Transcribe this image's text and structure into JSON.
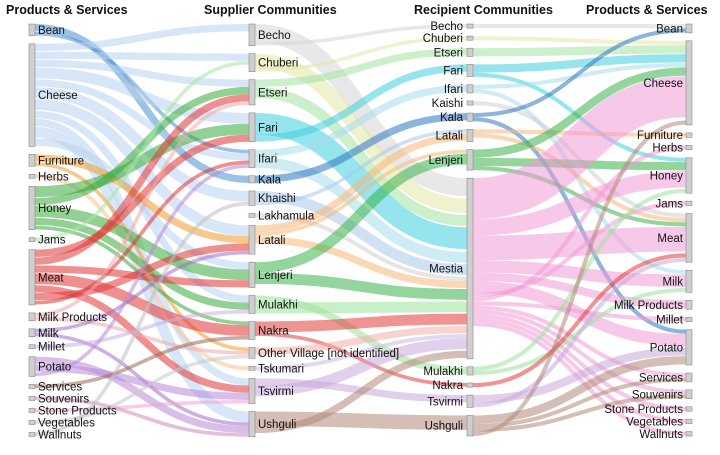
{
  "headers": {
    "left": "Products & Services",
    "supplier": "Supplier Communities",
    "recipient": "Recipient Communities",
    "right": "Products & Services"
  },
  "left_products": [
    "Bean",
    "Cheese",
    "Furniture",
    "Herbs",
    "Honey",
    "Jams",
    "Meat",
    "Milk Products",
    "Milk",
    "Millet",
    "Potato",
    "Services",
    "Souvenirs",
    "Stone Products",
    "Vegetables",
    "Wallnuts"
  ],
  "suppliers": [
    "Becho",
    "Chuberi",
    "Etseri",
    "Fari",
    "Ifari",
    "Kala",
    "Khaishi",
    "Lakhamula",
    "Latali",
    "Lenjeri",
    "Mulakhi",
    "Nakra",
    "Other Village [not identified]",
    "Tskumari",
    "Tsvirmi",
    "Ushguli"
  ],
  "recipients": [
    "Becho",
    "Chuberi",
    "Etseri",
    "Fari",
    "Ifari",
    "Kaishi",
    "Kala",
    "Latali",
    "Lenjeri",
    "Mestia",
    "Mulakhi",
    "Nakra",
    "Tsvirmi",
    "Ushguli"
  ],
  "right_products": [
    "Bean",
    "Cheese",
    "Furniture",
    "Herbs",
    "Honey",
    "Jams",
    "Meat",
    "Milk",
    "Milk Products",
    "Millet",
    "Potato",
    "Services",
    "Souvenirs",
    "Stone Products",
    "Vegetables",
    "Wallnuts"
  ],
  "colors": {
    "Becho": "#d6d6d6",
    "Chuberi": "#e3e6a6",
    "Etseri": "#a3e2a3",
    "Fari": "#3fcde0",
    "Ifari": "#a6dcea",
    "Kala": "#2f77c0",
    "Khaishi": "#a9c9ea",
    "Lakhamula": "#cfcfcf",
    "Latali": "#f5b878",
    "Lenjeri": "#3bb34a",
    "Mulakhi": "#9be39b",
    "Nakra": "#e23a3a",
    "Other Village [not identified]": "#f0b1a6",
    "Tskumari": "#c9b9e6",
    "Tsvirmi": "#c8a8dc",
    "Ushguli": "#b08878",
    "Mestia": "#f29ad7",
    "Kaishi": "#cfcfcf",
    "Bean": "#4a8fd0",
    "Cheese": "#b8d4f0",
    "Furniture": "#f39a2a",
    "Herbs": "#f5c48f",
    "Honey": "#3aaa3a",
    "Jams": "#a6e6a6",
    "Meat": "#e03434",
    "Milk Products": "#f3a7a7",
    "Milk": "#a070c8",
    "Millet": "#c8aee6",
    "Potato": "#b88ad8",
    "Services": "#9c6a5a",
    "Souvenirs": "#d08ab8",
    "Stone Products": "#f4a0d2",
    "Vegetables": "#c8c8c8",
    "Wallnuts": "#c0c0c0"
  },
  "flows_product_supplier": [
    [
      "Bean",
      "Kala",
      2
    ],
    [
      "Bean",
      "Ifari",
      1
    ],
    [
      "Cheese",
      "Becho",
      2
    ],
    [
      "Cheese",
      "Chuberi",
      2
    ],
    [
      "Cheese",
      "Etseri",
      2
    ],
    [
      "Cheese",
      "Fari",
      3
    ],
    [
      "Cheese",
      "Ifari",
      2
    ],
    [
      "Cheese",
      "Khaishi",
      3
    ],
    [
      "Cheese",
      "Latali",
      3
    ],
    [
      "Cheese",
      "Mulakhi",
      2
    ],
    [
      "Cheese",
      "Tsvirmi",
      2
    ],
    [
      "Cheese",
      "Ushguli",
      3
    ],
    [
      "Cheese",
      "Lenjeri",
      2
    ],
    [
      "Furniture",
      "Latali",
      2
    ],
    [
      "Furniture",
      "Other Village [not identified]",
      1
    ],
    [
      "Herbs",
      "Tskumari",
      1
    ],
    [
      "Honey",
      "Fari",
      3
    ],
    [
      "Honey",
      "Etseri",
      2
    ],
    [
      "Honey",
      "Lenjeri",
      3
    ],
    [
      "Honey",
      "Mulakhi",
      2
    ],
    [
      "Honey",
      "Nakra",
      1
    ],
    [
      "Jams",
      "Chuberi",
      1
    ],
    [
      "Meat",
      "Fari",
      2
    ],
    [
      "Meat",
      "Etseri",
      2
    ],
    [
      "Meat",
      "Lenjeri",
      2
    ],
    [
      "Meat",
      "Nakra",
      3
    ],
    [
      "Meat",
      "Tsvirmi",
      2
    ],
    [
      "Meat",
      "Latali",
      2
    ],
    [
      "Meat",
      "Ifari",
      1
    ],
    [
      "Milk Products",
      "Etseri",
      1
    ],
    [
      "Milk Products",
      "Other Village [not identified]",
      1
    ],
    [
      "Milk",
      "Latali",
      1
    ],
    [
      "Milk",
      "Ushguli",
      1
    ],
    [
      "Millet",
      "Mulakhi",
      1
    ],
    [
      "Potato",
      "Ushguli",
      2
    ],
    [
      "Potato",
      "Tsvirmi",
      2
    ],
    [
      "Potato",
      "Ifari",
      1
    ],
    [
      "Services",
      "Nakra",
      1
    ],
    [
      "Souvenirs",
      "Ushguli",
      1
    ],
    [
      "Stone Products",
      "Tsvirmi",
      1
    ],
    [
      "Vegetables",
      "Other Village [not identified]",
      1
    ],
    [
      "Wallnuts",
      "Khaishi",
      1
    ]
  ],
  "flows_supplier_recipient": [
    [
      "Becho",
      "Mestia",
      5
    ],
    [
      "Becho",
      "Becho",
      1
    ],
    [
      "Chuberi",
      "Mestia",
      4
    ],
    [
      "Chuberi",
      "Chuberi",
      1
    ],
    [
      "Etseri",
      "Etseri",
      2
    ],
    [
      "Etseri",
      "Mestia",
      3
    ],
    [
      "Fari",
      "Mestia",
      6
    ],
    [
      "Fari",
      "Fari",
      2
    ],
    [
      "Ifari",
      "Ifari",
      2
    ],
    [
      "Ifari",
      "Mestia",
      3
    ],
    [
      "Kala",
      "Kala",
      2
    ],
    [
      "Khaishi",
      "Mestia",
      3
    ],
    [
      "Khaishi",
      "Latali",
      1
    ],
    [
      "Lakhamula",
      "Mestia",
      1
    ],
    [
      "Latali",
      "Latali",
      2
    ],
    [
      "Latali",
      "Lenjeri",
      1
    ],
    [
      "Latali",
      "Mestia",
      2
    ],
    [
      "Lenjeri",
      "Lenjeri",
      3
    ],
    [
      "Lenjeri",
      "Mestia",
      3
    ],
    [
      "Mulakhi",
      "Mulakhi",
      2
    ],
    [
      "Mulakhi",
      "Mestia",
      3
    ],
    [
      "Nakra",
      "Mestia",
      3
    ],
    [
      "Nakra",
      "Nakra",
      1
    ],
    [
      "Other Village [not identified]",
      "Mestia",
      2
    ],
    [
      "Tskumari",
      "Mestia",
      1
    ],
    [
      "Tsvirmi",
      "Tsvirmi",
      2
    ],
    [
      "Tsvirmi",
      "Mestia",
      3
    ],
    [
      "Ushguli",
      "Ushguli",
      4
    ],
    [
      "Ushguli",
      "Mestia",
      2
    ]
  ],
  "flows_recipient_product": [
    [
      "Becho",
      "Bean",
      1
    ],
    [
      "Chuberi",
      "Cheese",
      1
    ],
    [
      "Etseri",
      "Cheese",
      2
    ],
    [
      "Fari",
      "Cheese",
      2
    ],
    [
      "Fari",
      "Honey",
      1
    ],
    [
      "Ifari",
      "Cheese",
      1
    ],
    [
      "Ifari",
      "Milk",
      1
    ],
    [
      "Kaishi",
      "Meat",
      1
    ],
    [
      "Kala",
      "Bean",
      1
    ],
    [
      "Kala",
      "Potato",
      1
    ],
    [
      "Latali",
      "Furniture",
      1
    ],
    [
      "Latali",
      "Meat",
      1
    ],
    [
      "Lenjeri",
      "Cheese",
      2
    ],
    [
      "Lenjeri",
      "Honey",
      2
    ],
    [
      "Lenjeri",
      "Meat",
      1
    ],
    [
      "Mestia",
      "Cheese",
      10
    ],
    [
      "Mestia",
      "Honey",
      4
    ],
    [
      "Mestia",
      "Meat",
      6
    ],
    [
      "Mestia",
      "Milk",
      3
    ],
    [
      "Mestia",
      "Milk Products",
      2
    ],
    [
      "Mestia",
      "Potato",
      3
    ],
    [
      "Mestia",
      "Jams",
      1
    ],
    [
      "Mestia",
      "Herbs",
      1
    ],
    [
      "Mestia",
      "Millet",
      1
    ],
    [
      "Mestia",
      "Services",
      1
    ],
    [
      "Mestia",
      "Souvenirs",
      1
    ],
    [
      "Mestia",
      "Stone Products",
      1
    ],
    [
      "Mestia",
      "Vegetables",
      1
    ],
    [
      "Mestia",
      "Wallnuts",
      1
    ],
    [
      "Mulakhi",
      "Honey",
      1
    ],
    [
      "Mulakhi",
      "Milk",
      1
    ],
    [
      "Nakra",
      "Meat",
      1
    ],
    [
      "Tsvirmi",
      "Potato",
      2
    ],
    [
      "Tsvirmi",
      "Meat",
      1
    ],
    [
      "Ushguli",
      "Potato",
      2
    ],
    [
      "Ushguli",
      "Services",
      1
    ],
    [
      "Ushguli",
      "Souvenirs",
      1
    ],
    [
      "Ushguli",
      "Cheese",
      1
    ]
  ]
}
